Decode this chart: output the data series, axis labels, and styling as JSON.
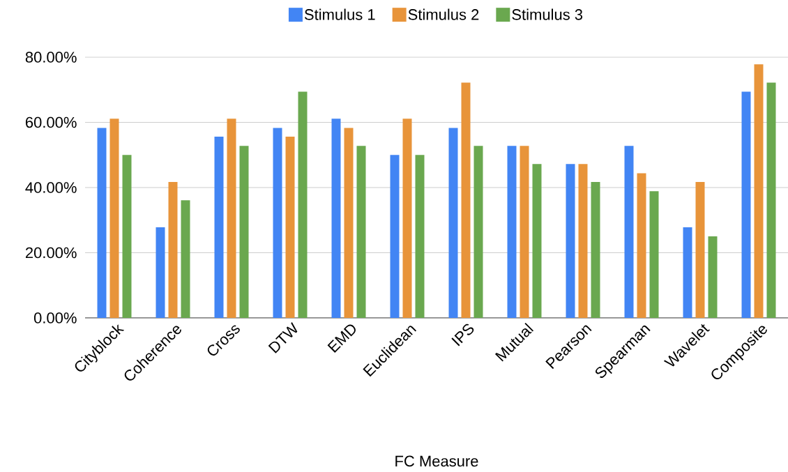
{
  "chart_data": {
    "type": "bar",
    "xlabel": "FC Measure",
    "categories": [
      "Cityblock",
      "Coherence",
      "Cross",
      "DTW",
      "EMD",
      "Euclidean",
      "IPS",
      "Mutual",
      "Pearson",
      "Spearman",
      "Wavelet",
      "Composite"
    ],
    "series": [
      {
        "name": "Stimulus 1",
        "color": "#4285f4",
        "values": [
          58.3,
          27.8,
          55.6,
          58.3,
          61.1,
          50.0,
          58.3,
          52.8,
          47.2,
          52.8,
          27.8,
          69.4
        ]
      },
      {
        "name": "Stimulus 2",
        "color": "#e8943a",
        "values": [
          61.1,
          41.7,
          61.1,
          55.6,
          58.3,
          61.1,
          72.2,
          52.8,
          47.2,
          44.4,
          41.7,
          77.8
        ]
      },
      {
        "name": "Stimulus 3",
        "color": "#6aa84f",
        "values": [
          50.0,
          36.1,
          52.8,
          69.4,
          52.8,
          50.0,
          52.8,
          47.2,
          41.7,
          38.9,
          25.0,
          72.2
        ]
      }
    ],
    "ylim": [
      0,
      80
    ],
    "yticks": [
      {
        "value": 0,
        "label": "0.00%"
      },
      {
        "value": 20,
        "label": "20.00%"
      },
      {
        "value": 40,
        "label": "40.00%"
      },
      {
        "value": 60,
        "label": "60.00%"
      },
      {
        "value": 80,
        "label": "80.00%"
      }
    ],
    "grid": "y",
    "legend": "top"
  }
}
